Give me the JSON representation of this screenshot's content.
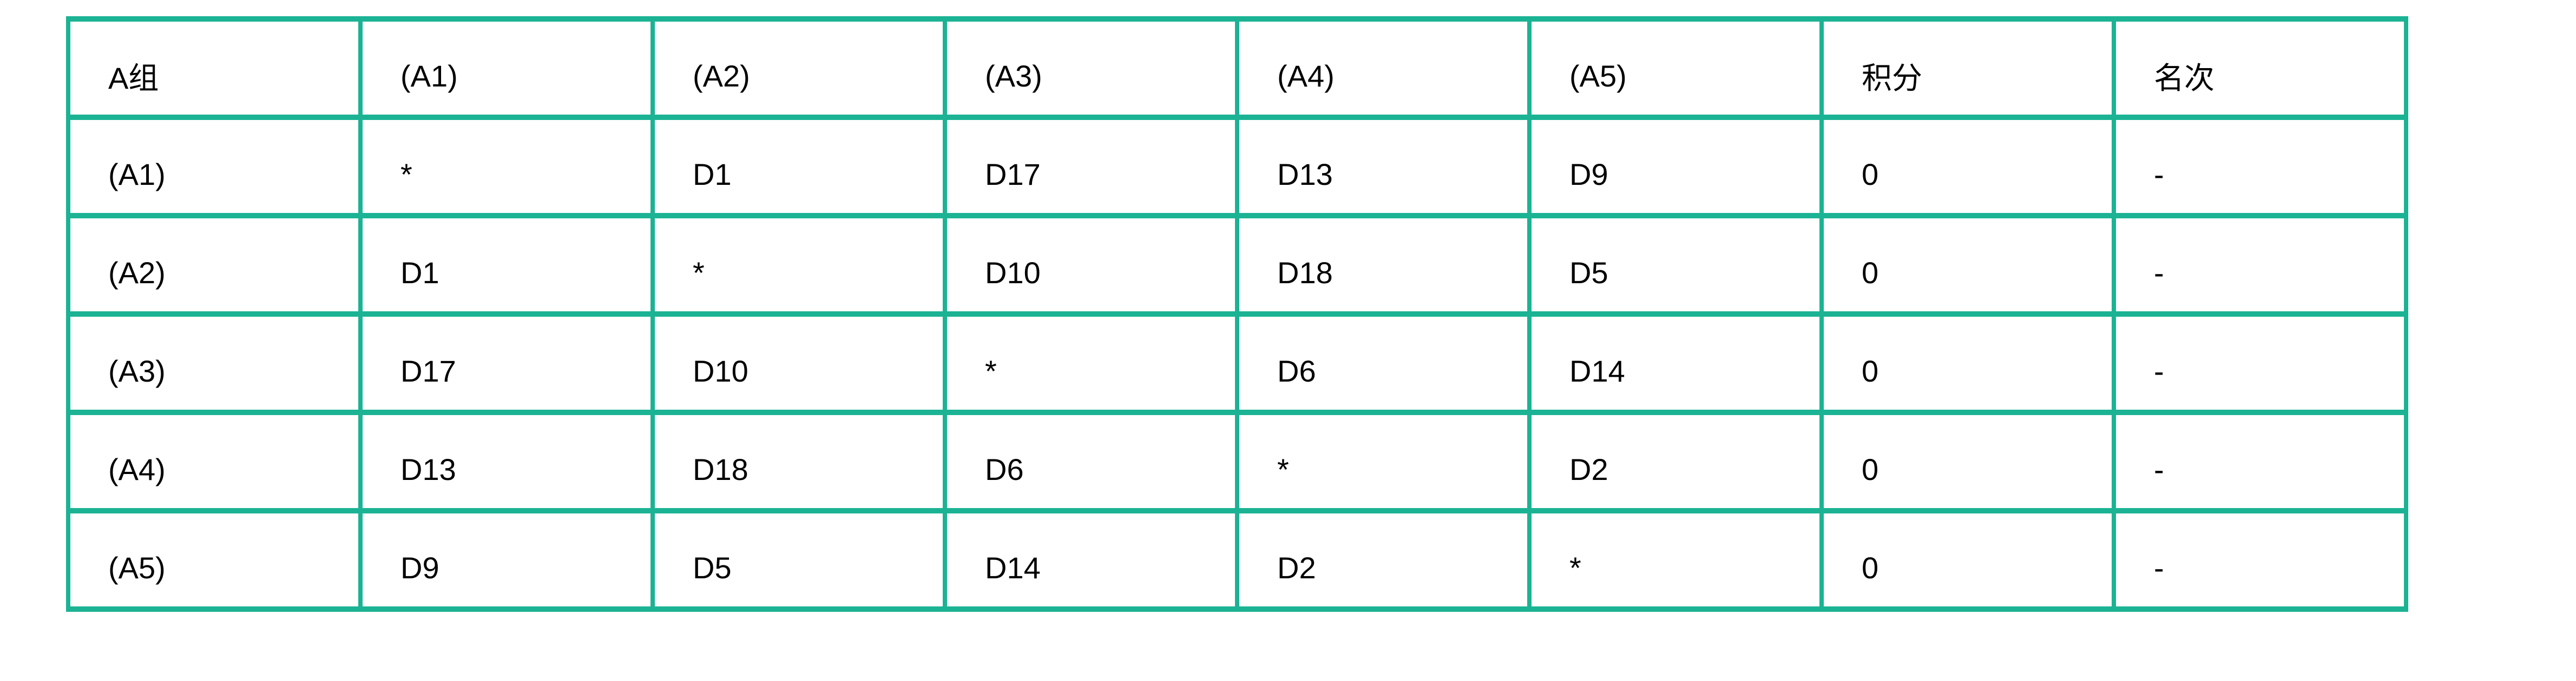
{
  "table": {
    "accent_color": "#1BB394",
    "header": [
      "A组",
      "(A1)",
      "(A2)",
      "(A3)",
      "(A4)",
      "(A5)",
      "积分",
      "名次"
    ],
    "rows": [
      [
        "(A1)",
        "*",
        "D1",
        "D17",
        "D13",
        "D9",
        "0",
        "-"
      ],
      [
        "(A2)",
        "D1",
        "*",
        "D10",
        "D18",
        "D5",
        "0",
        "-"
      ],
      [
        "(A3)",
        "D17",
        "D10",
        "*",
        "D6",
        "D14",
        "0",
        "-"
      ],
      [
        "(A4)",
        "D13",
        "D18",
        "D6",
        "*",
        "D2",
        "0",
        "-"
      ],
      [
        "(A5)",
        "D9",
        "D5",
        "D14",
        "D2",
        "*",
        "0",
        "-"
      ]
    ]
  }
}
